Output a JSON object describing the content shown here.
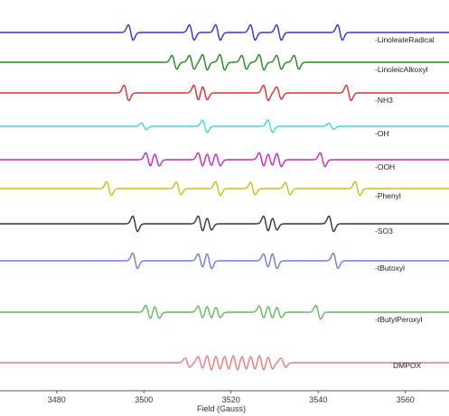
{
  "chart_data": {
    "type": "line",
    "xlabel": "Field (Gauss)",
    "ylabel": "",
    "title": "",
    "xlim": [
      3467,
      3570
    ],
    "xticks": [
      3480,
      3500,
      3520,
      3540,
      3560
    ],
    "tick_labels": [
      "3480",
      "3500",
      "3520",
      "3540",
      "3560"
    ],
    "grid": false,
    "legend": "none",
    "series": [
      {
        "name": "-LinoleateRadical",
        "color": "#2233ee",
        "lines": [
          {
            "x": 3497,
            "a": 1
          },
          {
            "x": 3511,
            "a": 1
          },
          {
            "x": 3517,
            "a": 1
          },
          {
            "x": 3525,
            "a": 1
          },
          {
            "x": 3531,
            "a": 1
          },
          {
            "x": 3545,
            "a": 1
          }
        ]
      },
      {
        "name": "-LinoleicAlkoxyl",
        "color": "#1a8a1a",
        "lines": [
          {
            "x": 3507,
            "a": 0.9
          },
          {
            "x": 3511,
            "a": 0.9
          },
          {
            "x": 3514,
            "a": 1
          },
          {
            "x": 3518,
            "a": 1
          },
          {
            "x": 3523,
            "a": 0.9
          },
          {
            "x": 3527,
            "a": 1
          },
          {
            "x": 3531,
            "a": 0.9
          },
          {
            "x": 3535,
            "a": 0.9
          }
        ]
      },
      {
        "name": "-NH3",
        "color": "#e82a2a",
        "lines": [
          {
            "x": 3496,
            "a": 1
          },
          {
            "x": 3512,
            "a": 1
          },
          {
            "x": 3514,
            "a": 0.9
          },
          {
            "x": 3528,
            "a": 1
          },
          {
            "x": 3531,
            "a": 0.8
          },
          {
            "x": 3547,
            "a": 1
          }
        ]
      },
      {
        "name": "-OH",
        "color": "#38d8e0",
        "lines": [
          {
            "x": 3500,
            "a": 0.45
          },
          {
            "x": 3514,
            "a": 0.8
          },
          {
            "x": 3529,
            "a": 0.8
          },
          {
            "x": 3543,
            "a": 0.4
          }
        ]
      },
      {
        "name": "-OOH",
        "color": "#cc22cc",
        "lines": [
          {
            "x": 3501,
            "a": 0.9
          },
          {
            "x": 3503,
            "a": 0.8
          },
          {
            "x": 3513,
            "a": 0.9
          },
          {
            "x": 3515,
            "a": 0.8
          },
          {
            "x": 3517,
            "a": 0.8
          },
          {
            "x": 3527,
            "a": 0.9
          },
          {
            "x": 3529,
            "a": 0.8
          },
          {
            "x": 3531,
            "a": 0.9
          },
          {
            "x": 3541,
            "a": 0.9
          }
        ]
      },
      {
        "name": "-Phenyl",
        "color": "#c8c010",
        "lines": [
          {
            "x": 3492,
            "a": 0.9
          },
          {
            "x": 3508,
            "a": 0.8
          },
          {
            "x": 3517,
            "a": 0.9
          },
          {
            "x": 3525,
            "a": 0.8
          },
          {
            "x": 3533,
            "a": 0.8
          },
          {
            "x": 3549,
            "a": 0.9
          }
        ]
      },
      {
        "name": "-SO3",
        "color": "#333333",
        "lines": [
          {
            "x": 3498,
            "a": 1
          },
          {
            "x": 3513,
            "a": 1
          },
          {
            "x": 3515,
            "a": 0.8
          },
          {
            "x": 3528,
            "a": 1
          },
          {
            "x": 3530,
            "a": 0.8
          },
          {
            "x": 3543,
            "a": 1
          }
        ]
      },
      {
        "name": "-tButoxyl",
        "color": "#6a7aee",
        "lines": [
          {
            "x": 3498,
            "a": 1
          },
          {
            "x": 3513,
            "a": 0.9
          },
          {
            "x": 3515,
            "a": 1
          },
          {
            "x": 3528,
            "a": 0.9
          },
          {
            "x": 3530,
            "a": 1
          },
          {
            "x": 3544,
            "a": 1
          }
        ]
      },
      {
        "name": "-tButylPeroxyl",
        "color": "#5cbc5c",
        "lines": [
          {
            "x": 3501,
            "a": 0.9
          },
          {
            "x": 3503,
            "a": 0.8
          },
          {
            "x": 3513,
            "a": 0.8
          },
          {
            "x": 3515,
            "a": 0.8
          },
          {
            "x": 3517,
            "a": 0.7
          },
          {
            "x": 3527,
            "a": 0.8
          },
          {
            "x": 3529,
            "a": 0.8
          },
          {
            "x": 3531,
            "a": 0.7
          },
          {
            "x": 3540,
            "a": 0.9
          }
        ]
      },
      {
        "name": "DMPOX",
        "color": "#f07878",
        "lines": [
          {
            "x": 3510,
            "a": 0.6
          },
          {
            "x": 3513,
            "a": 0.8
          },
          {
            "x": 3515,
            "a": 1
          },
          {
            "x": 3517,
            "a": 0.9
          },
          {
            "x": 3519,
            "a": 0.9
          },
          {
            "x": 3521,
            "a": 1
          },
          {
            "x": 3523,
            "a": 0.9
          },
          {
            "x": 3525,
            "a": 0.9
          },
          {
            "x": 3527,
            "a": 1
          },
          {
            "x": 3529,
            "a": 0.8
          },
          {
            "x": 3532,
            "a": 0.6
          }
        ]
      }
    ]
  }
}
